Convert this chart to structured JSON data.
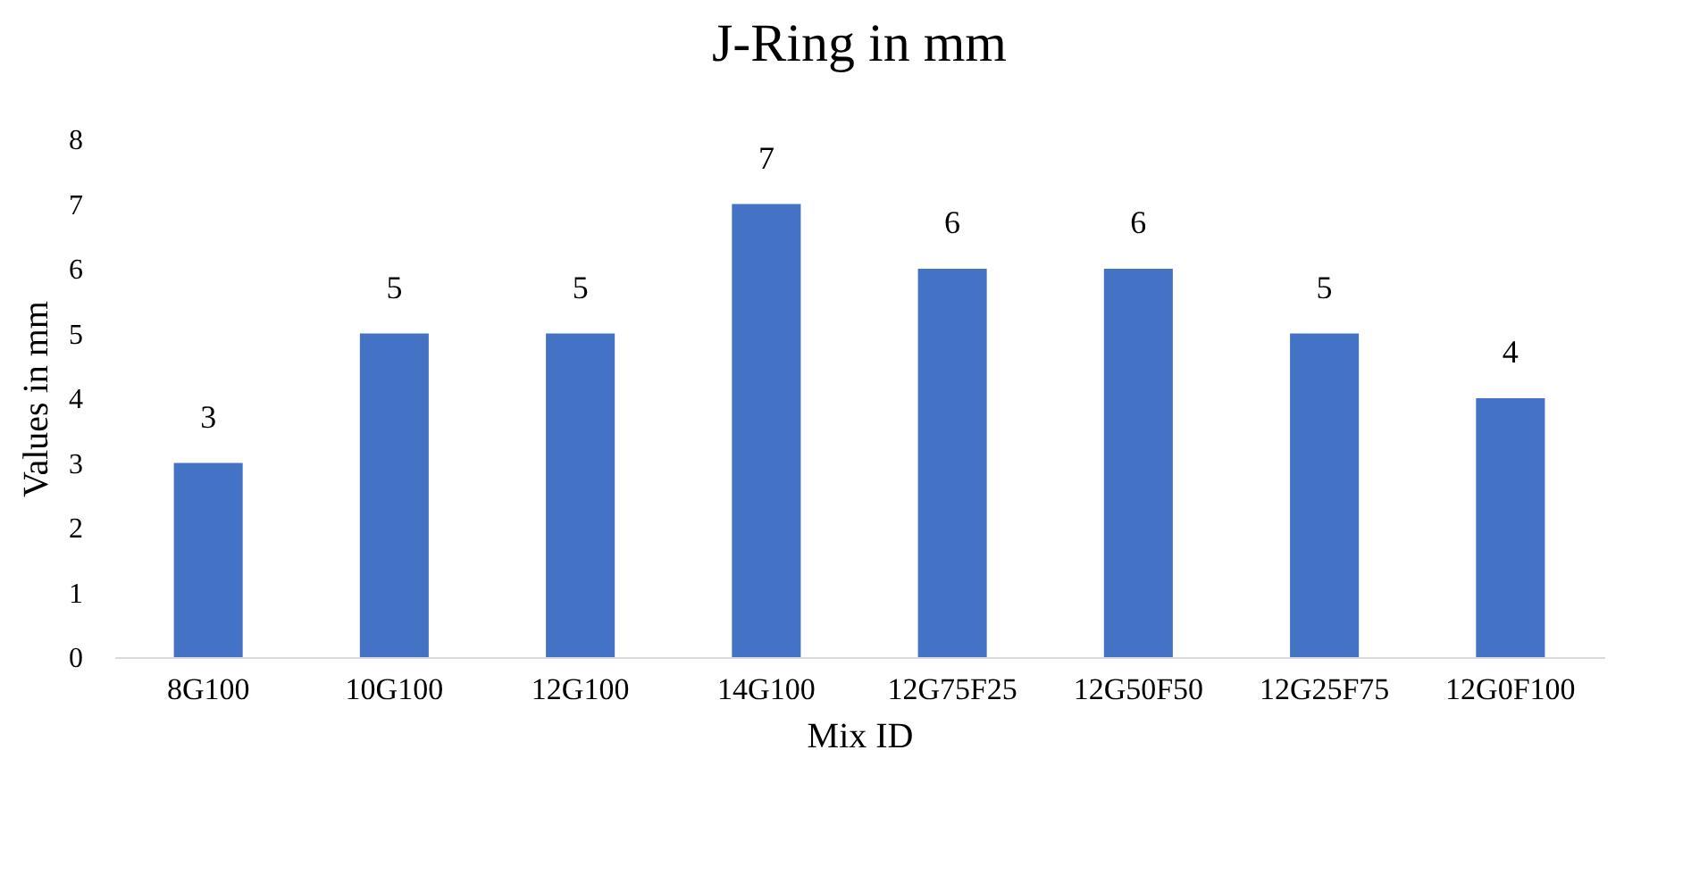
{
  "chart_data": {
    "type": "bar",
    "title": "J-Ring in mm",
    "xlabel": "Mix ID",
    "ylabel": "Values in mm",
    "categories": [
      "8G100",
      "10G100",
      "12G100",
      "14G100",
      "12G75F25",
      "12G50F50",
      "12G25F75",
      "12G0F100"
    ],
    "values": [
      3,
      5,
      5,
      7,
      6,
      6,
      5,
      4
    ],
    "color": "#4472c4",
    "ylim": [
      0,
      8
    ],
    "yticks": [
      0,
      1,
      2,
      3,
      4,
      5,
      6,
      7,
      8
    ],
    "grid": false,
    "data_labels": true
  }
}
